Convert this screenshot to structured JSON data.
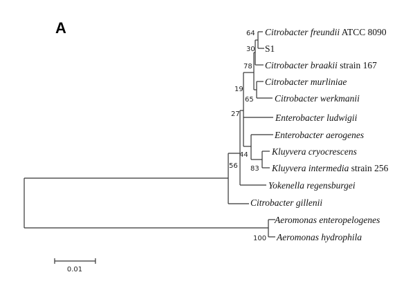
{
  "panel_label": "A",
  "leaves": [
    {
      "italic": "Citrobacter freundii",
      "plain": " ATCC 8090"
    },
    {
      "italic": "",
      "plain": "S1"
    },
    {
      "italic": "Citrobacter braakii",
      "plain": " strain 167"
    },
    {
      "italic": "Citrobacter murliniae",
      "plain": ""
    },
    {
      "italic": "Citrobacter werkmanii",
      "plain": ""
    },
    {
      "italic": "Enterobacter ludwigii",
      "plain": ""
    },
    {
      "italic": "Enterobacter aerogenes",
      "plain": ""
    },
    {
      "italic": "Kluyvera cryocrescens",
      "plain": ""
    },
    {
      "italic": "Kluyvera intermedia",
      "plain": " strain 256"
    },
    {
      "italic": "Yokenella regensburgei",
      "plain": ""
    },
    {
      "italic": "Citrobacter gillenii",
      "plain": ""
    },
    {
      "italic": "Aeromonas enteropelogenes",
      "plain": ""
    },
    {
      "italic": "Aeromonas hydrophila",
      "plain": ""
    }
  ],
  "bootstrap": [
    "64",
    "30",
    "78",
    "19",
    "65",
    "27",
    "56",
    "44",
    "83",
    "100"
  ],
  "scale_bar": "0.01"
}
